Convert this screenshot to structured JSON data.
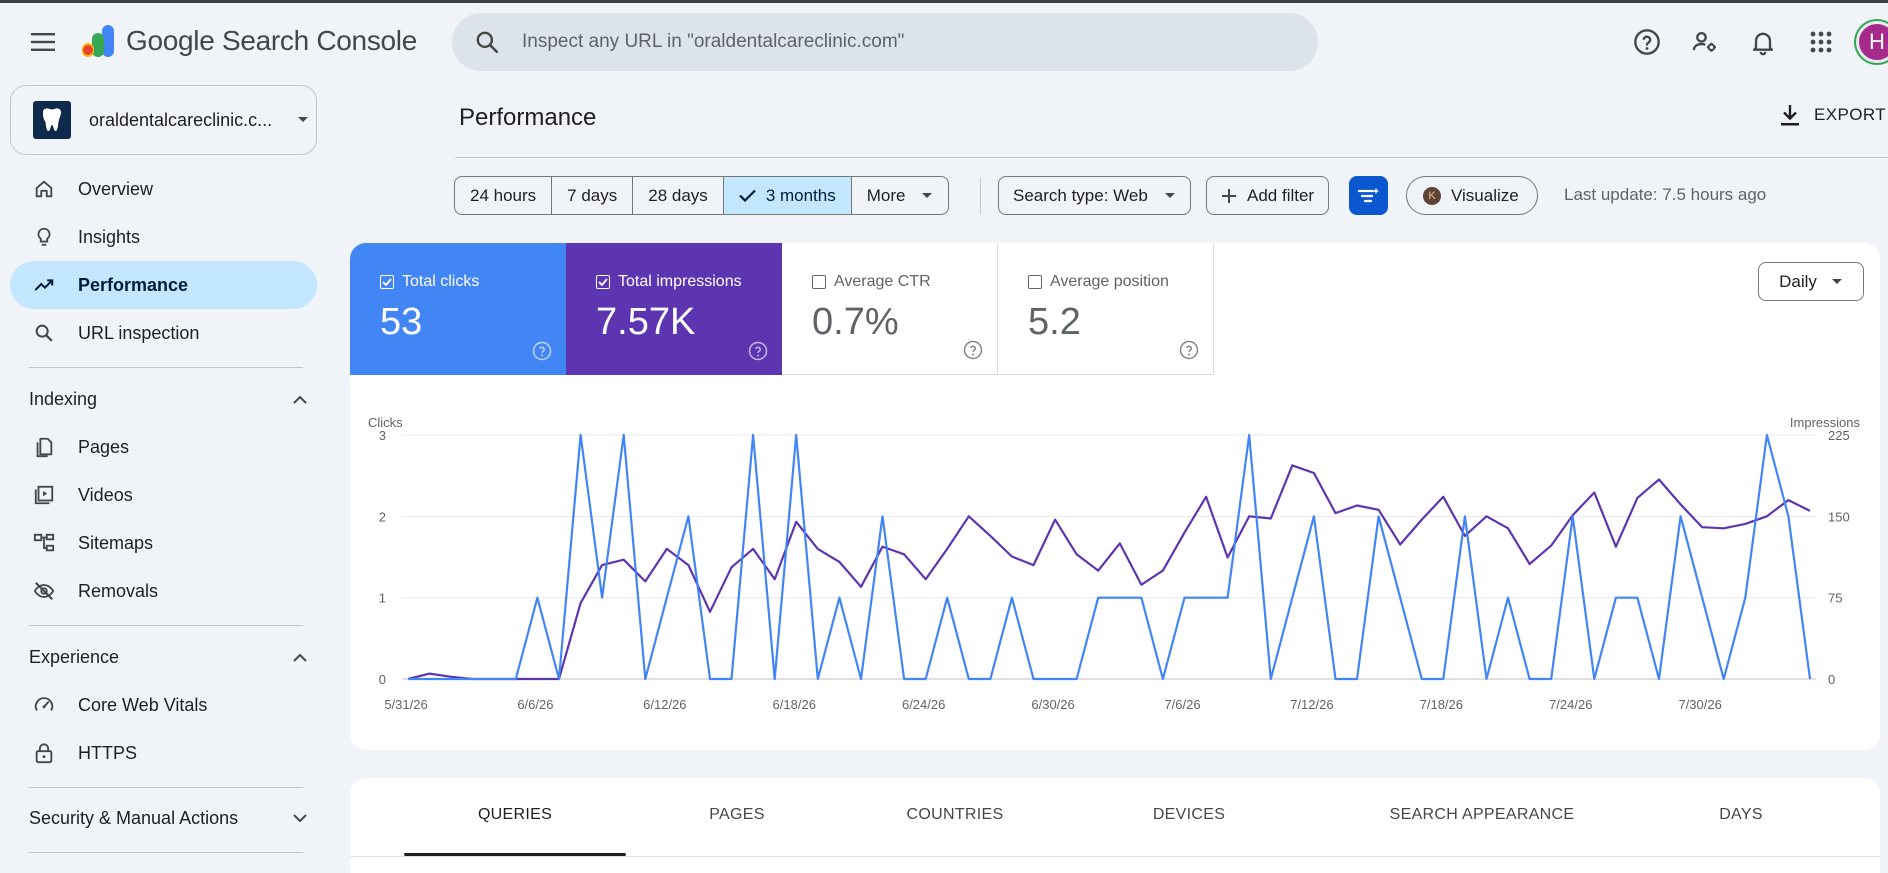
{
  "header": {
    "app_name": "Google Search Console",
    "search_placeholder": "Inspect any URL in \"oraldentalcareclinic.com\"",
    "avatar_initial": "H",
    "icons": [
      "menu-icon",
      "help-icon",
      "manage-users-icon",
      "bell-icon",
      "apps-icon"
    ]
  },
  "sidebar": {
    "property_name": "oraldentalcareclinic.c...",
    "items": [
      {
        "label": "Overview",
        "icon": "home-icon"
      },
      {
        "label": "Insights",
        "icon": "lightbulb-icon"
      },
      {
        "label": "Performance",
        "icon": "trending-up-icon",
        "active": true
      },
      {
        "label": "URL inspection",
        "icon": "search-icon"
      }
    ],
    "indexing": {
      "heading": "Indexing",
      "items": [
        {
          "label": "Pages",
          "icon": "pages-icon"
        },
        {
          "label": "Videos",
          "icon": "video-icon"
        },
        {
          "label": "Sitemaps",
          "icon": "sitemap-icon"
        },
        {
          "label": "Removals",
          "icon": "eye-off-icon"
        }
      ]
    },
    "experience": {
      "heading": "Experience",
      "items": [
        {
          "label": "Core Web Vitals",
          "icon": "speed-icon"
        },
        {
          "label": "HTTPS",
          "icon": "lock-icon"
        }
      ]
    },
    "security": {
      "heading": "Security & Manual Actions"
    }
  },
  "main": {
    "title": "Performance",
    "export_label": "EXPORT",
    "ranges": [
      "24 hours",
      "7 days",
      "28 days",
      "3 months",
      "More"
    ],
    "selected_range": "3 months",
    "search_type": "Search type: Web",
    "add_filter": "Add filter",
    "visualize": "Visualize",
    "visualize_badge": "K",
    "last_update": "Last update: 7.5 hours ago",
    "granularity": "Daily",
    "metrics": [
      {
        "label": "Total clicks",
        "value": "53",
        "checked": true,
        "color": "#4285f4"
      },
      {
        "label": "Total impressions",
        "value": "7.57K",
        "checked": true,
        "color": "#5e35b1"
      },
      {
        "label": "Average CTR",
        "value": "0.7%",
        "checked": false
      },
      {
        "label": "Average position",
        "value": "5.2",
        "checked": false
      }
    ],
    "tabs": [
      "QUERIES",
      "PAGES",
      "COUNTRIES",
      "DEVICES",
      "SEARCH APPEARANCE",
      "DAYS"
    ]
  },
  "chart_data": {
    "type": "line",
    "x_tick_labels": [
      "5/31/26",
      "6/6/26",
      "6/12/26",
      "6/18/26",
      "6/24/26",
      "6/30/26",
      "7/6/26",
      "7/12/26",
      "7/18/26",
      "7/24/26",
      "7/30/26"
    ],
    "y_left_label": "Clicks",
    "y_right_label": "Impressions",
    "y_left_ticks": [
      "0",
      "1",
      "2",
      "3"
    ],
    "y_right_ticks": [
      "0",
      "75",
      "150",
      "225"
    ],
    "ylim_left": [
      0,
      3
    ],
    "ylim_right": [
      0,
      225
    ],
    "grid": true,
    "series": [
      {
        "name": "Clicks",
        "axis": "left",
        "color": "#4285f4",
        "values": [
          0,
          0,
          0,
          0,
          0,
          0,
          1,
          0,
          3,
          1,
          3,
          0,
          1,
          2,
          0,
          0,
          3,
          0,
          3,
          0,
          1,
          0,
          2,
          0,
          0,
          1,
          0,
          0,
          1,
          0,
          0,
          0,
          1,
          1,
          1,
          0,
          1,
          1,
          1,
          3,
          0,
          1,
          2,
          0,
          0,
          2,
          1,
          0,
          0,
          2,
          0,
          1,
          0,
          0,
          2,
          0,
          1,
          1,
          0,
          2,
          1,
          0,
          1,
          3,
          2,
          0
        ]
      },
      {
        "name": "Impressions",
        "axis": "right",
        "color": "#5e35b1",
        "values": [
          0,
          5,
          2,
          0,
          0,
          0,
          0,
          0,
          70,
          105,
          110,
          90,
          120,
          105,
          62,
          103,
          120,
          92,
          145,
          120,
          108,
          85,
          122,
          115,
          92,
          120,
          150,
          132,
          113,
          105,
          147,
          115,
          100,
          125,
          87,
          100,
          135,
          168,
          112,
          150,
          148,
          197,
          190,
          153,
          160,
          156,
          124,
          147,
          168,
          132,
          150,
          139,
          106,
          123,
          151,
          172,
          122,
          167,
          184,
          161,
          140,
          139,
          143,
          150,
          165,
          155
        ]
      }
    ]
  }
}
